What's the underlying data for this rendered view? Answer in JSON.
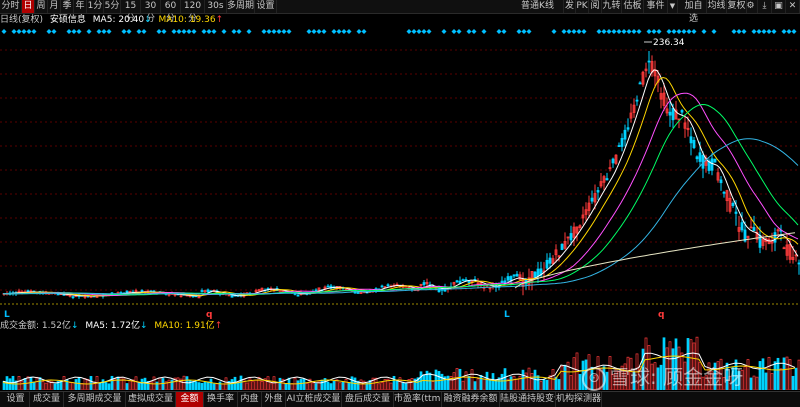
{
  "toolbar": {
    "items": [
      "分时",
      "日",
      "周",
      "月",
      "季",
      "年",
      "1分",
      "5分",
      "15分",
      "30分",
      "60分",
      "120分",
      "30s",
      "多周期",
      "设置"
    ],
    "active": "日",
    "right_items": [
      "普通K线",
      "发",
      "PK",
      "阅",
      "九转",
      "估板",
      "事件"
    ],
    "right_actions": [
      "加自选",
      "均线",
      "复权"
    ],
    "menu_arrow": "▼"
  },
  "info": {
    "period": "日线(复权)",
    "stock_name": "安硕信息",
    "ma5_label": "MA5: 20.40",
    "ma5_arrow": "↓",
    "ma10_label": "MA10: 19.36",
    "ma10_arrow": "↑"
  },
  "annotations": {
    "high_label": "236.34",
    "markers": [
      "L",
      "q",
      "L",
      "q"
    ]
  },
  "volume": {
    "label": "成交金额: 1.52亿",
    "label_arrow": "↓",
    "ma5": "MA5: 1.72亿",
    "ma5_arrow": "↓",
    "ma10": "MA10: 1.91亿",
    "ma10_arrow": "↑"
  },
  "tabs": [
    "设置",
    "成交量",
    "多周期成交量",
    "虚拟成交量",
    "金额",
    "换手率",
    "内盘",
    "外盘",
    "AI立桩成交量",
    "盘后成交量",
    "市盈率(ttm)",
    "融资融券余额",
    "陆股通持股变化",
    "机构探测器"
  ],
  "active_tab": "金额",
  "watermark": {
    "text": "雪球: 顾金金呀"
  },
  "colors": {
    "up": "#ff3b3b",
    "down": "#00d2ff",
    "ma5": "#ffffff",
    "ma10": "#ffd700",
    "ma20": "#ff50ff",
    "ma30": "#00ff66",
    "ma60": "#33b5e5",
    "ma250": "#e8e6c4",
    "marker": "#00bfff"
  },
  "chart_data": {
    "type": "candlestick",
    "title": "安硕信息",
    "period": "日线(复权)",
    "high": 236.34,
    "series": [
      {
        "name": "MA5",
        "last": 20.4
      },
      {
        "name": "MA10",
        "last": 19.36
      }
    ],
    "volume": {
      "label": "成交金额",
      "last": "1.52亿",
      "ma5": "1.72亿",
      "ma10": "1.91亿"
    }
  }
}
